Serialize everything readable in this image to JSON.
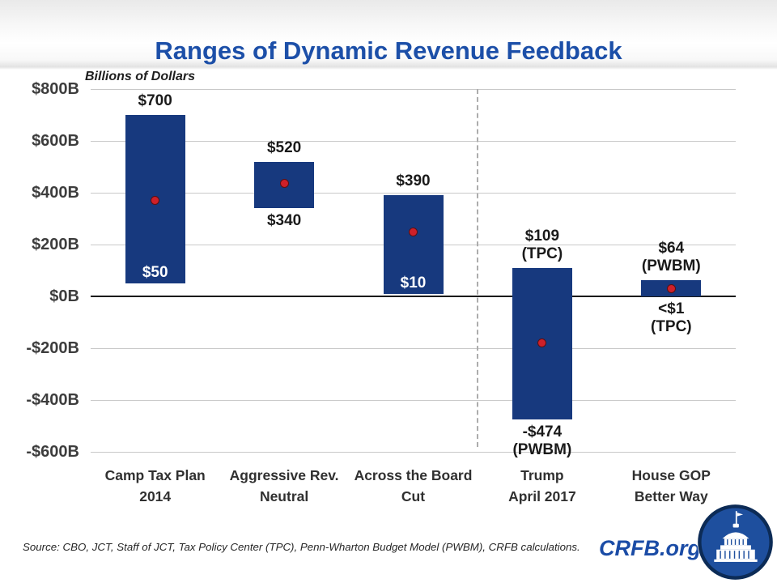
{
  "chart_data": {
    "type": "bar",
    "subtype": "floating-range-bars",
    "title": "Ranges of Dynamic Revenue Feedback",
    "axis_units_label": "Billions of Dollars",
    "ylim": [
      -600,
      800
    ],
    "ytick_step": 200,
    "yticks": [
      800,
      600,
      400,
      200,
      0,
      -200,
      -400,
      -600
    ],
    "ytick_labels": [
      "$800B",
      "$600B",
      "$400B",
      "$200B",
      "$0B",
      "-$200B",
      "-$400B",
      "-$600B"
    ],
    "grid": true,
    "legend": "none",
    "divider_after_category_index": 2,
    "bars": [
      {
        "category_lines": [
          "Camp Tax Plan",
          "2014"
        ],
        "high": 700,
        "low": 50,
        "marker_estimate": 370,
        "high_label_lines": [
          "$700"
        ],
        "low_label_lines": [
          "$50"
        ],
        "low_label_inside_bar": true
      },
      {
        "category_lines": [
          "Aggressive Rev.",
          "Neutral"
        ],
        "high": 520,
        "low": 340,
        "marker_estimate": 435,
        "high_label_lines": [
          "$520"
        ],
        "low_label_lines": [
          "$340"
        ],
        "low_label_inside_bar": false
      },
      {
        "category_lines": [
          "Across the Board",
          "Cut"
        ],
        "high": 390,
        "low": 10,
        "marker_estimate": 250,
        "high_label_lines": [
          "$390"
        ],
        "low_label_lines": [
          "$10"
        ],
        "low_label_inside_bar": true
      },
      {
        "category_lines": [
          "Trump",
          "April 2017"
        ],
        "high": 109,
        "low": -474,
        "marker_estimate": -180,
        "high_label_lines": [
          "$109",
          "(TPC)"
        ],
        "low_label_lines": [
          "-$474",
          "(PWBM)"
        ],
        "low_label_inside_bar": false
      },
      {
        "category_lines": [
          "House GOP",
          "Better Way"
        ],
        "high": 64,
        "low": 0.5,
        "marker_estimate": 30,
        "high_label_lines": [
          "$64",
          "(PWBM)"
        ],
        "low_label_lines": [
          "<$1",
          "(TPC)"
        ],
        "low_label_inside_bar": false
      }
    ],
    "colors": {
      "bar": "#17397E",
      "marker": "#CE2029",
      "marker_border": "#5A1013",
      "grid": "#C9C9C9",
      "zero_line": "#1A1A1A",
      "divider": "#ACACAC",
      "title": "#1C4FA8",
      "value_label": "#1A1A1A",
      "value_label_inside": "#FFFFFF",
      "tick_label": "#3D3D3D",
      "category_label": "#303030"
    }
  },
  "footer": {
    "source_text": "Source: CBO, JCT, Staff of JCT, Tax Policy Center (TPC), Penn-Wharton Budget Model (PWBM), CRFB calculations.",
    "brand_text": "CRFB.org",
    "brand_color": "#1B4CA6",
    "logo": "capitol-dome-logo"
  }
}
